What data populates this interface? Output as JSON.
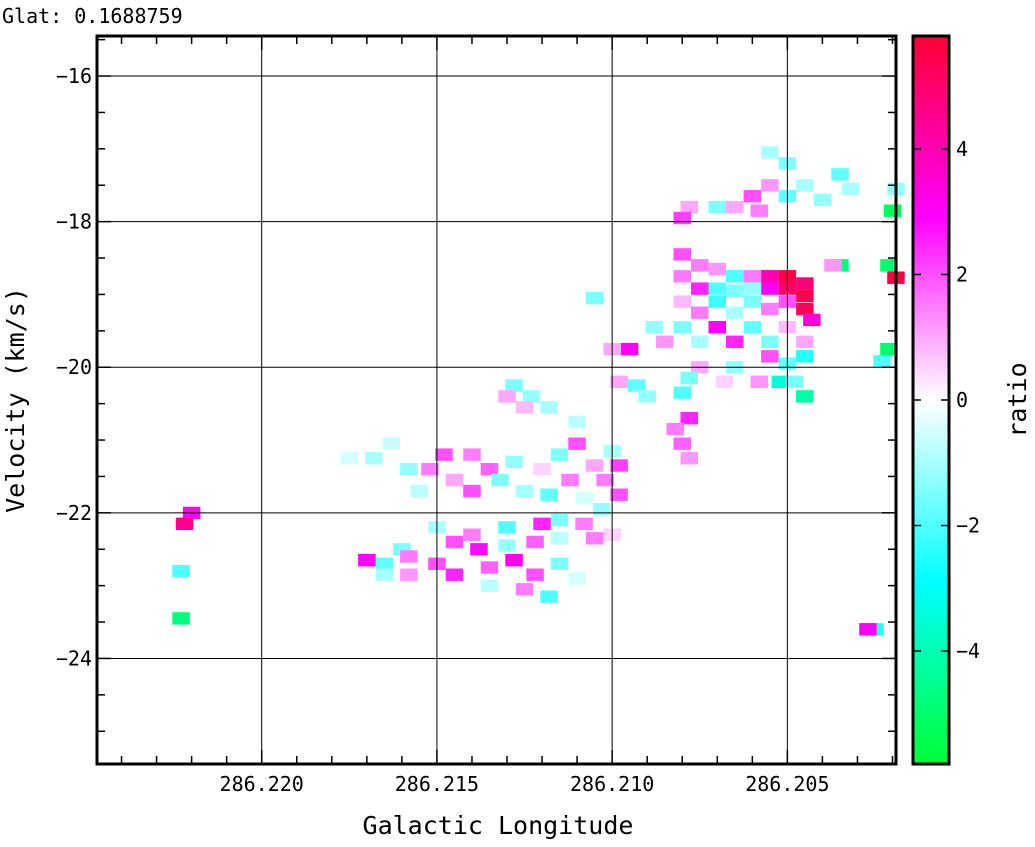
{
  "header": {
    "glat_label": "Glat: 0.1688759"
  },
  "chart_data": {
    "type": "heatmap",
    "title": "",
    "xlabel": "Galactic Longitude",
    "ylabel": "Velocity (km/s)",
    "colorbar_label": "ratio",
    "xlim": [
      286.2247,
      286.2019
    ],
    "ylim": [
      -25.45,
      -15.45
    ],
    "x_ticks": [
      286.22,
      286.215,
      286.21,
      286.205
    ],
    "x_tick_labels": [
      "286.220",
      "286.215",
      "286.210",
      "286.205"
    ],
    "y_ticks": [
      -24,
      -22,
      -20,
      -18,
      -16
    ],
    "y_tick_labels": [
      "−24",
      "−22",
      "−20",
      "−18",
      "−16"
    ],
    "grid": true,
    "colorbar": {
      "range": [
        -5.8,
        5.8
      ],
      "ticks": [
        -4,
        -2,
        0,
        2,
        4
      ],
      "tick_labels": [
        "−4",
        "−2",
        "0",
        "2",
        "4"
      ],
      "colors": {
        "min": "#00ff33",
        "low": "#00ffff",
        "mid": "#ffffff",
        "high": "#ff00ff",
        "max": "#ff0033"
      }
    },
    "pixel_size": {
      "dlon": 0.0005,
      "dv": 0.17
    },
    "points": [
      [
        286.2019,
        -17.55,
        -1.2
      ],
      [
        286.202,
        -17.85,
        -5.2
      ],
      [
        286.2019,
        -18.77,
        5.6
      ],
      [
        286.2021,
        -18.6,
        -5.0
      ],
      [
        286.2021,
        -19.75,
        -5.0
      ],
      [
        286.2023,
        -19.92,
        -2.0
      ],
      [
        286.2025,
        -23.6,
        -2.5
      ],
      [
        286.2027,
        -23.6,
        3.0
      ],
      [
        286.2035,
        -18.6,
        -4.8
      ],
      [
        286.2037,
        -18.6,
        1.2
      ],
      [
        286.2045,
        -18.85,
        4.8
      ],
      [
        286.2045,
        -19.02,
        5.4
      ],
      [
        286.2045,
        -19.2,
        5.2
      ],
      [
        286.2043,
        -19.35,
        3.5
      ],
      [
        286.205,
        -18.75,
        5.5
      ],
      [
        286.205,
        -18.92,
        5.0
      ],
      [
        286.205,
        -19.1,
        2.0
      ],
      [
        286.2055,
        -18.75,
        4.0
      ],
      [
        286.2055,
        -18.92,
        3.0
      ],
      [
        286.2055,
        -19.2,
        1.5
      ],
      [
        286.206,
        -18.75,
        1.5
      ],
      [
        286.206,
        -18.92,
        -1.2
      ],
      [
        286.2065,
        -18.75,
        -2.0
      ],
      [
        286.2065,
        -18.95,
        -1.5
      ],
      [
        286.207,
        -18.65,
        1.2
      ],
      [
        286.207,
        -18.92,
        -2.0
      ],
      [
        286.2075,
        -18.6,
        1.5
      ],
      [
        286.2075,
        -18.92,
        2.5
      ],
      [
        286.208,
        -18.45,
        2.0
      ],
      [
        286.208,
        -18.75,
        1.5
      ],
      [
        286.206,
        -19.1,
        -1.5
      ],
      [
        286.207,
        -19.1,
        -2.2
      ],
      [
        286.208,
        -19.1,
        0.8
      ],
      [
        286.2065,
        -19.25,
        -1.0
      ],
      [
        286.2075,
        -19.25,
        1.5
      ],
      [
        286.205,
        -19.45,
        0.8
      ],
      [
        286.206,
        -19.45,
        -1.8
      ],
      [
        286.207,
        -19.45,
        3.0
      ],
      [
        286.208,
        -19.45,
        -1.5
      ],
      [
        286.2088,
        -19.45,
        -1.2
      ],
      [
        286.2045,
        -19.65,
        1.0
      ],
      [
        286.2055,
        -19.65,
        -1.5
      ],
      [
        286.2065,
        -19.65,
        2.5
      ],
      [
        286.2075,
        -19.65,
        -1.0
      ],
      [
        286.2085,
        -19.65,
        1.2
      ],
      [
        286.2055,
        -19.85,
        2.0
      ],
      [
        286.2045,
        -19.85,
        -2.5
      ],
      [
        286.205,
        -19.95,
        -1.8
      ],
      [
        286.2065,
        -20.0,
        -1.2
      ],
      [
        286.2075,
        -20.0,
        1.0
      ],
      [
        286.2052,
        -20.2,
        -3.5
      ],
      [
        286.2048,
        -20.2,
        -1.5
      ],
      [
        286.2058,
        -20.2,
        1.2
      ],
      [
        286.2068,
        -20.2,
        0.5
      ],
      [
        286.2045,
        -20.4,
        -4.2
      ],
      [
        286.2078,
        -20.15,
        -1.5
      ],
      [
        286.208,
        -20.35,
        -2.0
      ],
      [
        286.2078,
        -20.7,
        2.5
      ],
      [
        286.2082,
        -20.85,
        1.5
      ],
      [
        286.208,
        -21.05,
        1.8
      ],
      [
        286.2078,
        -21.25,
        1.2
      ],
      [
        286.2093,
        -20.25,
        -1.8
      ],
      [
        286.2098,
        -20.2,
        1.0
      ],
      [
        286.209,
        -20.4,
        -1.2
      ],
      [
        286.2095,
        -19.75,
        3.0
      ],
      [
        286.21,
        -19.75,
        1.0
      ],
      [
        286.2105,
        -19.05,
        -1.5
      ],
      [
        286.2055,
        -17.05,
        -1.0
      ],
      [
        286.205,
        -17.2,
        -1.5
      ],
      [
        286.2055,
        -17.5,
        1.2
      ],
      [
        286.205,
        -17.65,
        -1.8
      ],
      [
        286.206,
        -17.65,
        2.0
      ],
      [
        286.2065,
        -17.8,
        1.0
      ],
      [
        286.207,
        -17.8,
        -1.5
      ],
      [
        286.2078,
        -17.8,
        1.0
      ],
      [
        286.208,
        -17.95,
        2.2
      ],
      [
        286.2058,
        -17.85,
        1.5
      ],
      [
        286.2045,
        -17.5,
        -1.0
      ],
      [
        286.204,
        -17.7,
        -1.2
      ],
      [
        286.2035,
        -17.35,
        -1.8
      ],
      [
        286.2032,
        -17.55,
        -1.0
      ],
      [
        286.222,
        -22.0,
        3.0
      ],
      [
        286.2222,
        -22.15,
        4.5
      ],
      [
        286.2223,
        -22.8,
        -2.0
      ],
      [
        286.2223,
        -23.45,
        -4.8
      ],
      [
        286.2128,
        -20.25,
        -1.5
      ],
      [
        286.2123,
        -20.4,
        -1.2
      ],
      [
        286.213,
        -20.4,
        1.0
      ],
      [
        286.2118,
        -20.55,
        -1.0
      ],
      [
        286.2125,
        -20.55,
        0.8
      ],
      [
        286.211,
        -20.75,
        -0.8
      ],
      [
        286.2163,
        -21.05,
        -0.6
      ],
      [
        286.2168,
        -21.25,
        -1.0
      ],
      [
        286.2175,
        -21.25,
        -0.5
      ],
      [
        286.2158,
        -21.4,
        -1.2
      ],
      [
        286.2148,
        -21.2,
        2.0
      ],
      [
        286.2152,
        -21.4,
        1.5
      ],
      [
        286.2145,
        -21.55,
        1.0
      ],
      [
        286.2155,
        -21.7,
        -0.8
      ],
      [
        286.214,
        -21.2,
        1.5
      ],
      [
        286.2135,
        -21.4,
        1.8
      ],
      [
        286.2128,
        -21.3,
        -1.2
      ],
      [
        286.2132,
        -21.55,
        -1.5
      ],
      [
        286.214,
        -21.7,
        2.0
      ],
      [
        286.2125,
        -21.7,
        -1.0
      ],
      [
        286.2115,
        -21.2,
        -1.5
      ],
      [
        286.212,
        -21.4,
        0.5
      ],
      [
        286.2112,
        -21.55,
        1.5
      ],
      [
        286.2118,
        -21.75,
        -1.8
      ],
      [
        286.2105,
        -21.35,
        1.0
      ],
      [
        286.2102,
        -21.55,
        1.5
      ],
      [
        286.2108,
        -21.8,
        -0.5
      ],
      [
        286.211,
        -21.05,
        2.0
      ],
      [
        286.21,
        -21.15,
        -1.0
      ],
      [
        286.2098,
        -21.35,
        2.2
      ],
      [
        286.2098,
        -21.75,
        2.0
      ],
      [
        286.2103,
        -21.95,
        -1.2
      ],
      [
        286.2108,
        -22.15,
        1.5
      ],
      [
        286.2115,
        -22.1,
        -1.5
      ],
      [
        286.212,
        -22.15,
        2.5
      ],
      [
        286.213,
        -22.2,
        -2.0
      ],
      [
        286.214,
        -22.3,
        1.5
      ],
      [
        286.215,
        -22.2,
        -1.0
      ],
      [
        286.2145,
        -22.4,
        2.0
      ],
      [
        286.2138,
        -22.5,
        2.8
      ],
      [
        286.213,
        -22.45,
        -1.2
      ],
      [
        286.2122,
        -22.4,
        1.8
      ],
      [
        286.2115,
        -22.35,
        -0.8
      ],
      [
        286.2105,
        -22.35,
        1.5
      ],
      [
        286.21,
        -22.3,
        0.5
      ],
      [
        286.216,
        -22.5,
        -1.5
      ],
      [
        286.2165,
        -22.7,
        -1.8
      ],
      [
        286.217,
        -22.65,
        3.0
      ],
      [
        286.2158,
        -22.6,
        1.5
      ],
      [
        286.215,
        -22.7,
        2.0
      ],
      [
        286.2145,
        -22.85,
        2.5
      ],
      [
        286.2135,
        -22.75,
        1.8
      ],
      [
        286.2128,
        -22.65,
        3.2
      ],
      [
        286.2122,
        -22.85,
        2.0
      ],
      [
        286.2115,
        -22.7,
        -1.5
      ],
      [
        286.211,
        -22.9,
        -0.5
      ],
      [
        286.2125,
        -23.05,
        1.5
      ],
      [
        286.2118,
        -23.15,
        -2.0
      ],
      [
        286.2135,
        -23.0,
        -0.8
      ],
      [
        286.2165,
        -22.85,
        -1.0
      ],
      [
        286.2158,
        -22.85,
        1.2
      ]
    ]
  }
}
